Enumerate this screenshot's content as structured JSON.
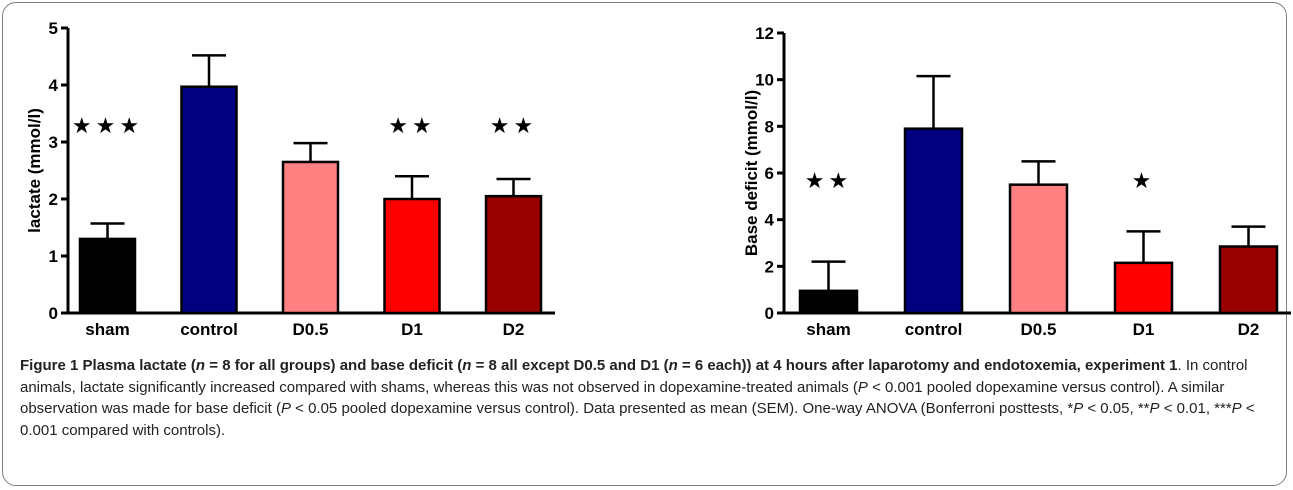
{
  "chart_data": [
    {
      "type": "bar",
      "ylabel": "lactate (mmol/l)",
      "categories": [
        "sham",
        "control",
        "D0.5",
        "D1",
        "D2"
      ],
      "values": [
        1.3,
        3.97,
        2.65,
        2.0,
        2.05
      ],
      "errors": [
        0.27,
        0.55,
        0.33,
        0.4,
        0.3
      ],
      "colors": [
        "#000000",
        "#000080",
        "#ff8080",
        "#ff0000",
        "#990000"
      ],
      "ylim": [
        0,
        5
      ],
      "yticks": [
        "0",
        "1",
        "2",
        "3",
        "4",
        "5"
      ],
      "significance": [
        "★★★",
        "",
        "",
        "★★",
        "★★"
      ]
    },
    {
      "type": "bar",
      "ylabel": "Base deficit (mmol/l)",
      "categories": [
        "sham",
        "control",
        "D0.5",
        "D1",
        "D2"
      ],
      "values": [
        0.95,
        7.9,
        5.5,
        2.15,
        2.85
      ],
      "errors": [
        1.25,
        2.25,
        1.0,
        1.35,
        0.85
      ],
      "colors": [
        "#000000",
        "#000080",
        "#ff8080",
        "#ff0000",
        "#990000"
      ],
      "ylim": [
        0,
        12
      ],
      "yticks": [
        "0",
        "2",
        "4",
        "6",
        "8",
        "10",
        "12"
      ],
      "significance": [
        "★★",
        "",
        "",
        "★",
        ""
      ]
    }
  ],
  "caption": {
    "fig_label": "Figure 1",
    "title_parts": [
      " Plasma lactate (",
      "n",
      " = 8 for all groups) and base deficit (",
      "n",
      " = 8 all except D0.5 and D1 (",
      "n",
      " = 6 each)) at 4 hours after laparotomy and endotoxemia, experiment 1"
    ],
    "body_parts": [
      ". In control animals, lactate significantly increased compared with shams, whereas this was not observed in dopexamine-treated animals (",
      "P",
      " < 0.001 pooled dopexamine versus control). A similar observation was made for base deficit (",
      "P",
      " < 0.05 pooled dopexamine versus control). Data presented as mean (SEM). One-way ANOVA (Bonferroni posttests, *",
      "P",
      " < 0.05, **",
      "P",
      " < 0.01, ***",
      "P",
      " < 0.001 compared with controls)."
    ]
  }
}
